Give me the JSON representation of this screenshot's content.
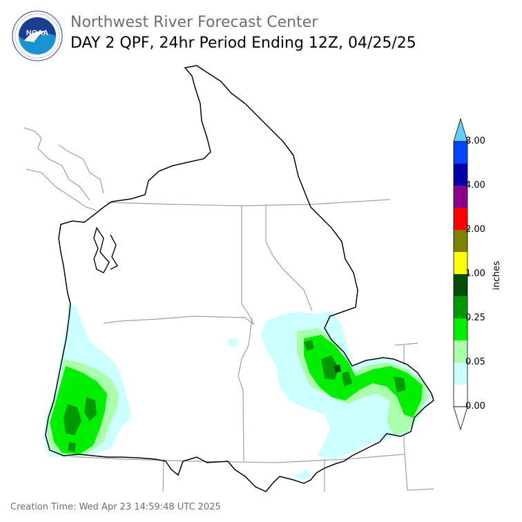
{
  "header": {
    "org": "Northwest River Forecast Center",
    "product": "DAY 2 QPF, 24hr Period Ending 12Z, 04/25/25"
  },
  "footer": {
    "creation_time": "Creation Time: Wed Apr 23 14:59:48 UTC 2025"
  },
  "logo": {
    "text": "NOAA",
    "ring_text": "NATIONAL OCEANIC AND ATMOSPHERIC ADMINISTRATION · U.S. DEPARTMENT OF COMMERCE",
    "colors": {
      "ring": "#ffffff",
      "inner_top": "#1d3e8f",
      "inner_bottom": "#1a93d4",
      "bird": "#ffffff"
    }
  },
  "legend": {
    "unit": "inches",
    "ticks": [
      "8.00",
      "4.00",
      "2.00",
      "1.00",
      "0.25",
      "0.05",
      "0.00"
    ],
    "colors": [
      "#ffffff",
      "#ccffff",
      "#aaffaa",
      "#00ee00",
      "#009900",
      "#004d00",
      "#ffff00",
      "#808000",
      "#ff0000",
      "#8b008b",
      "#0000aa",
      "#0044ff",
      "#66ccff"
    ]
  },
  "map": {
    "basin_outline_color": "#000000",
    "state_border_color": "#999999",
    "precip_colors": {
      "trace": "#ccffff",
      "light": "#aaffaa",
      "moderate": "#00ee00",
      "heavy": "#009900",
      "very_heavy": "#004d00"
    }
  }
}
